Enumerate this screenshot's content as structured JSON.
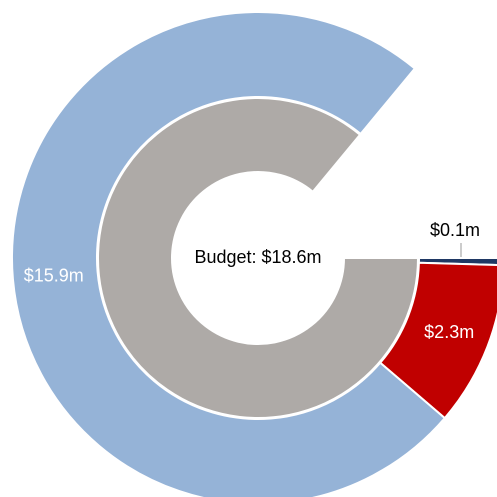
{
  "chart_data": {
    "type": "pie",
    "center_label": "Budget: $18.6m",
    "rings": [
      {
        "name": "inner",
        "slices": [
          {
            "label": "",
            "value": 18.6,
            "color": "#AEAAA7"
          }
        ]
      },
      {
        "name": "outer",
        "slices": [
          {
            "label": "$15.9m",
            "value": 15.9,
            "color": "#95B3D7",
            "label_color": "#FFFFFF"
          },
          {
            "label": "$2.3m",
            "value": 2.3,
            "color": "#C00000",
            "label_color": "#FFFFFF"
          },
          {
            "label": "$0.1m",
            "value": 0.1,
            "color": "#1F3864",
            "label_color": "#000000"
          }
        ]
      }
    ]
  }
}
